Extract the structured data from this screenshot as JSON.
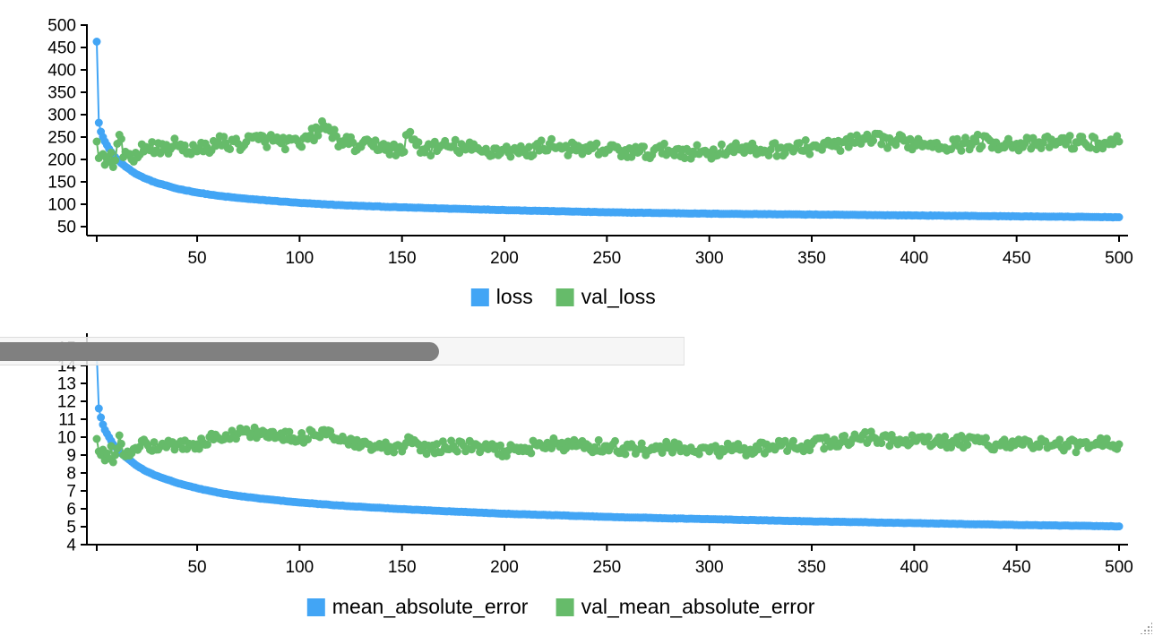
{
  "colors": {
    "loss": "#42A5F5",
    "val": "#66BB6A"
  },
  "chart_data": [
    {
      "type": "line",
      "title": "",
      "xlabel": "",
      "ylabel": "",
      "xlim": [
        1,
        500
      ],
      "ylim": [
        30,
        500
      ],
      "x_ticks": [
        50,
        100,
        150,
        200,
        250,
        300,
        350,
        400,
        450,
        500
      ],
      "y_ticks": [
        50,
        100,
        150,
        200,
        250,
        300,
        350,
        400,
        450,
        500
      ],
      "legend": "bottom-center",
      "grid": false,
      "series": [
        {
          "name": "loss",
          "color": "#42A5F5",
          "x": [
            1,
            2,
            3,
            4,
            5,
            6,
            7,
            8,
            9,
            10,
            12,
            15,
            20,
            25,
            30,
            40,
            50,
            60,
            70,
            80,
            100,
            120,
            150,
            175,
            200,
            250,
            300,
            350,
            400,
            450,
            500
          ],
          "values": [
            463,
            282,
            262,
            250,
            240,
            232,
            224,
            217,
            211,
            205,
            196,
            184,
            168,
            157,
            148,
            135,
            126,
            119,
            114,
            110,
            103,
            98,
            93,
            90,
            87,
            82,
            79,
            77,
            75,
            73,
            71
          ]
        },
        {
          "name": "val_loss",
          "color": "#66BB6A",
          "x": [
            1,
            2,
            3,
            4,
            5,
            6,
            7,
            8,
            9,
            10,
            12,
            14,
            16,
            18,
            20,
            25,
            30,
            40,
            50,
            60,
            70,
            80,
            90,
            100,
            112,
            120,
            130,
            140,
            150,
            153,
            160,
            175,
            190,
            200,
            210,
            222,
            235,
            250,
            265,
            280,
            290,
            300,
            310,
            320,
            330,
            340,
            350,
            360,
            370,
            380,
            390,
            400,
            410,
            420,
            430,
            440,
            450,
            460,
            470,
            480,
            490,
            500
          ],
          "values": [
            240,
            203,
            208,
            212,
            188,
            205,
            195,
            215,
            183,
            198,
            255,
            205,
            210,
            200,
            215,
            228,
            220,
            232,
            218,
            238,
            235,
            245,
            240,
            232,
            275,
            240,
            228,
            232,
            215,
            257,
            222,
            230,
            218,
            222,
            215,
            235,
            220,
            222,
            215,
            220,
            218,
            215,
            225,
            220,
            222,
            225,
            228,
            230,
            238,
            242,
            240,
            238,
            236,
            232,
            240,
            238,
            235,
            232,
            240,
            238,
            236,
            240
          ]
        }
      ]
    },
    {
      "type": "line",
      "title": "",
      "xlabel": "",
      "ylabel": "",
      "xlim": [
        1,
        500
      ],
      "ylim": [
        4,
        15.7
      ],
      "x_ticks": [
        50,
        100,
        150,
        200,
        250,
        300,
        350,
        400,
        450,
        500
      ],
      "y_ticks": [
        4,
        5,
        6,
        7,
        8,
        9,
        10,
        11,
        12,
        13,
        14,
        15
      ],
      "legend": "bottom-center",
      "grid": false,
      "series": [
        {
          "name": "mean_absolute_error",
          "color": "#42A5F5",
          "x": [
            1,
            2,
            3,
            4,
            5,
            6,
            7,
            8,
            9,
            10,
            12,
            15,
            20,
            25,
            30,
            40,
            50,
            60,
            70,
            80,
            100,
            120,
            150,
            175,
            200,
            250,
            300,
            350,
            400,
            450,
            500
          ],
          "values": [
            14.6,
            11.6,
            11.1,
            10.7,
            10.4,
            10.2,
            10.0,
            9.8,
            9.6,
            9.45,
            9.2,
            8.9,
            8.45,
            8.1,
            7.85,
            7.45,
            7.15,
            6.9,
            6.72,
            6.58,
            6.35,
            6.18,
            5.98,
            5.85,
            5.73,
            5.55,
            5.42,
            5.3,
            5.2,
            5.1,
            5.02
          ]
        },
        {
          "name": "val_mean_absolute_error",
          "color": "#66BB6A",
          "x": [
            1,
            2,
            3,
            4,
            5,
            6,
            7,
            8,
            9,
            10,
            12,
            14,
            16,
            18,
            20,
            25,
            30,
            40,
            50,
            60,
            70,
            80,
            90,
            100,
            112,
            120,
            130,
            140,
            150,
            153,
            160,
            175,
            190,
            200,
            210,
            222,
            235,
            250,
            265,
            280,
            290,
            300,
            310,
            320,
            330,
            340,
            350,
            360,
            370,
            380,
            390,
            400,
            410,
            420,
            430,
            440,
            450,
            460,
            470,
            480,
            490,
            500
          ],
          "values": [
            9.9,
            9.2,
            9.0,
            9.3,
            8.7,
            9.1,
            8.8,
            9.5,
            8.6,
            9.0,
            10.1,
            9.0,
            9.2,
            9.1,
            9.4,
            9.7,
            9.3,
            9.6,
            9.6,
            10.0,
            10.2,
            10.3,
            10.0,
            9.9,
            10.4,
            9.8,
            9.5,
            9.4,
            9.2,
            10.0,
            9.3,
            9.5,
            9.4,
            9.2,
            9.4,
            9.6,
            9.5,
            9.5,
            9.3,
            9.4,
            9.3,
            9.2,
            9.4,
            9.3,
            9.4,
            9.5,
            9.6,
            9.7,
            9.9,
            10.0,
            9.8,
            9.8,
            9.7,
            9.7,
            9.8,
            9.6,
            9.7,
            9.6,
            9.6,
            9.5,
            9.6,
            9.6
          ]
        }
      ]
    }
  ]
}
